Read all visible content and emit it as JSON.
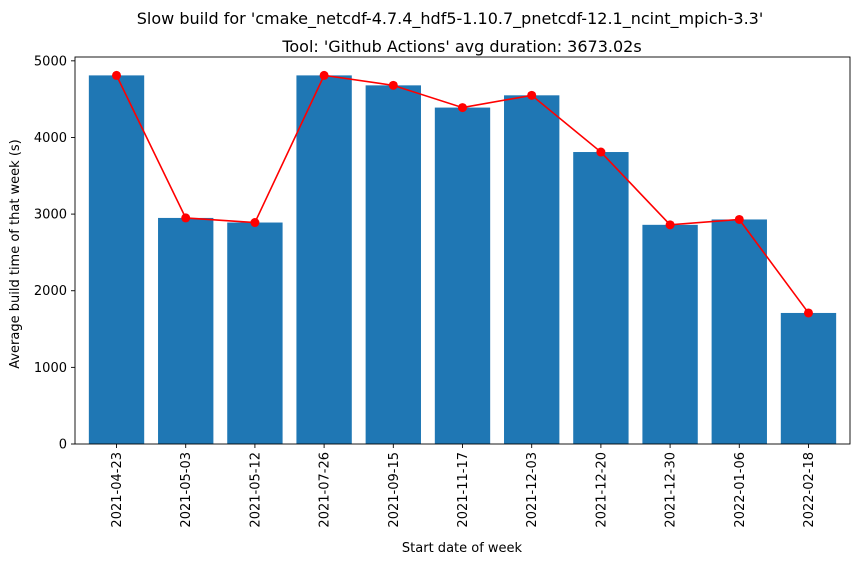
{
  "chart_data": {
    "type": "bar",
    "suptitle": "Slow build for 'cmake_netcdf-4.7.4_hdf5-1.10.7_pnetcdf-12.1_ncint_mpich-3.3'",
    "title": "Tool: 'Github Actions' avg duration: 3673.02s",
    "xlabel": "Start date of week",
    "ylabel": "Average build time of that week (s)",
    "categories": [
      "2021-04-23",
      "2021-05-03",
      "2021-05-12",
      "2021-07-26",
      "2021-09-15",
      "2021-11-17",
      "2021-12-03",
      "2021-12-20",
      "2021-12-30",
      "2022-01-06",
      "2022-02-18"
    ],
    "values": [
      4810,
      2950,
      2890,
      4810,
      4680,
      4390,
      4550,
      3810,
      2860,
      2930,
      1710
    ],
    "line_overlay": true,
    "ylim": [
      0,
      5050
    ],
    "yticks": [
      0,
      1000,
      2000,
      3000,
      4000,
      5000
    ],
    "grid": false,
    "colors": {
      "bar": "#1f77b4",
      "line": "#ff0000",
      "marker": "#ff0000"
    }
  }
}
